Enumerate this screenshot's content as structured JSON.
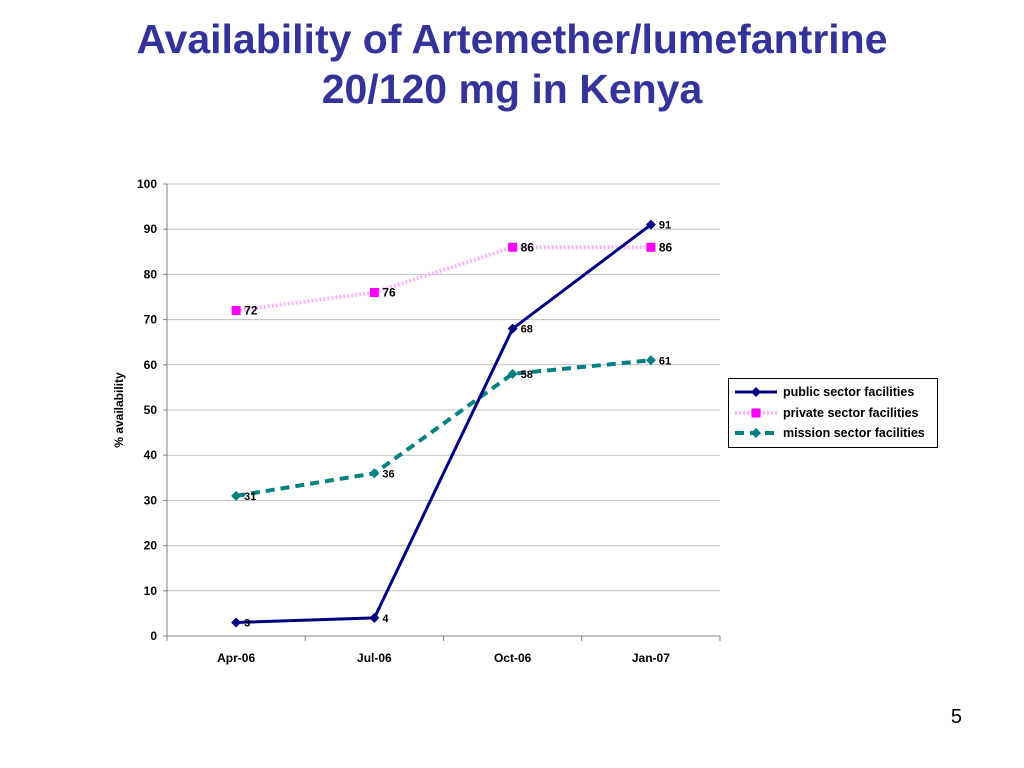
{
  "slide": {
    "title_line1": "Availability of Artemether/lumefantrine",
    "title_line2": "20/120 mg in Kenya",
    "page_number": "5",
    "title_color": "#333399"
  },
  "chart_data": {
    "type": "line",
    "title": "",
    "xlabel": "",
    "ylabel": "% availability",
    "categories": [
      "Apr-06",
      "Jul-06",
      "Oct-06",
      "Jan-07"
    ],
    "ylim": [
      0,
      100
    ],
    "yticks": [
      0,
      10,
      20,
      30,
      40,
      50,
      60,
      70,
      80,
      90,
      100
    ],
    "grid": true,
    "legend_position": "right",
    "series": [
      {
        "name": "public sector facilities",
        "values": [
          3,
          4,
          68,
          91
        ],
        "color": "#000080",
        "line_style": "solid",
        "marker": "diamond"
      },
      {
        "name": "private sector facilities",
        "values": [
          72,
          76,
          86,
          86
        ],
        "color": "#FF00FF",
        "line_color": "#FFB3FF",
        "line_style": "dotted",
        "marker": "square"
      },
      {
        "name": "mission sector facilities",
        "values": [
          31,
          36,
          58,
          61
        ],
        "color": "#008080",
        "line_style": "dashed",
        "marker": "diamond"
      }
    ]
  }
}
